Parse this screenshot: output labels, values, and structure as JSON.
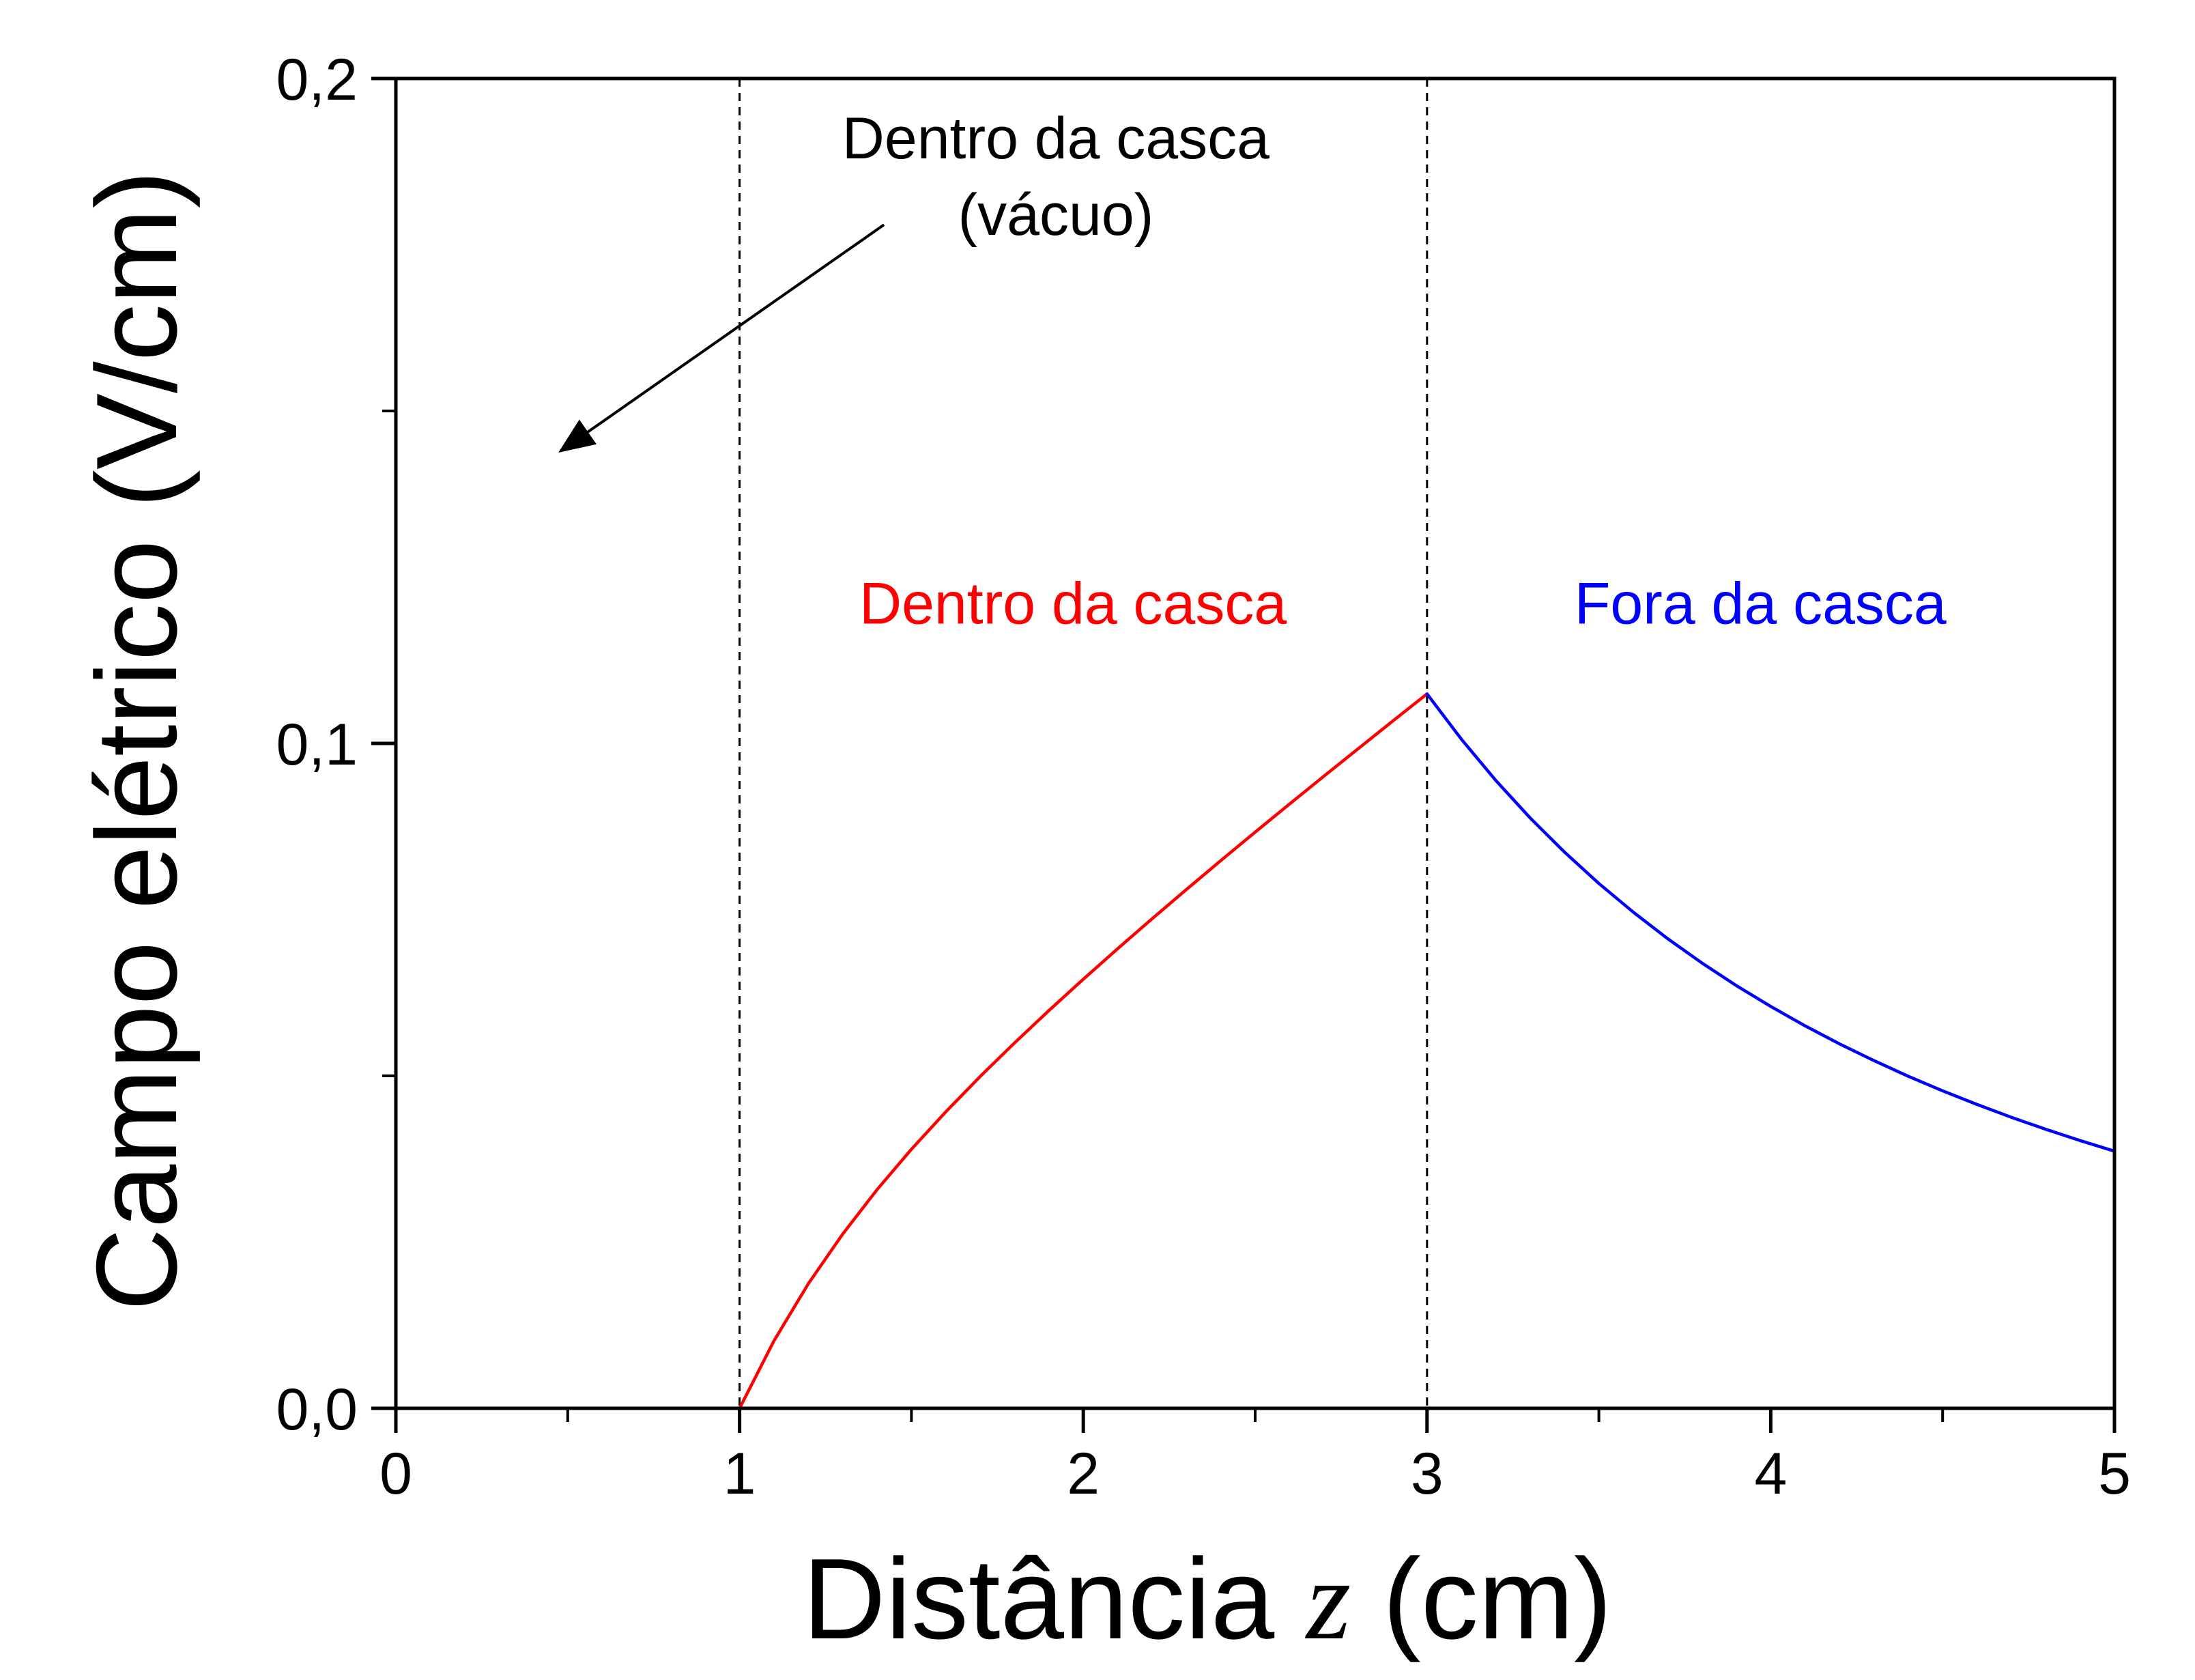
{
  "chart_data": {
    "type": "line",
    "xlabel_parts": [
      "Distância ",
      "z",
      " (cm)"
    ],
    "ylabel": "Campo elétrico (V/cm)",
    "xlim": [
      0,
      5
    ],
    "ylim": [
      0,
      0.2
    ],
    "x_ticks": [
      0,
      1,
      2,
      3,
      4,
      5
    ],
    "x_tick_labels": [
      "0",
      "1",
      "2",
      "3",
      "4",
      "5"
    ],
    "x_minor_ticks": [
      0.5,
      1.5,
      2.5,
      3.5,
      4.5
    ],
    "y_ticks": [
      0,
      0.1,
      0.2
    ],
    "y_tick_labels": [
      "0,0",
      "0,1",
      "0,2"
    ],
    "y_minor_ticks": [
      0.05,
      0.15
    ],
    "grid": false,
    "vlines": [
      {
        "x": 1,
        "style": "dashed",
        "color": "#000000"
      },
      {
        "x": 3,
        "style": "dashed",
        "color": "#000000"
      }
    ],
    "series": [
      {
        "color": "#ff0000",
        "x": [
          1.0,
          1.1,
          1.2,
          1.3,
          1.4,
          1.5,
          1.6,
          1.7,
          1.8,
          1.9,
          2.0,
          2.1,
          2.2,
          2.3,
          2.4,
          2.5,
          2.6,
          2.7,
          2.8,
          2.9,
          3.0
        ],
        "y": [
          0.0,
          0.01015,
          0.01874,
          0.02621,
          0.03288,
          0.03896,
          0.0446,
          0.04991,
          0.05496,
          0.05983,
          0.06454,
          0.06913,
          0.07362,
          0.07803,
          0.08237,
          0.08665,
          0.09088,
          0.09507,
          0.09922,
          0.10335,
          0.10744
        ]
      },
      {
        "color": "#0000ff",
        "x": [
          3.0,
          3.1,
          3.2,
          3.3,
          3.4,
          3.5,
          3.6,
          3.7,
          3.8,
          3.9,
          4.0,
          4.1,
          4.2,
          4.3,
          4.4,
          4.5,
          4.6,
          4.7,
          4.8,
          4.9,
          5.0
        ],
        "y": [
          0.10744,
          0.10063,
          0.09444,
          0.08879,
          0.08365,
          0.07893,
          0.07462,
          0.07064,
          0.06697,
          0.06357,
          0.06044,
          0.05752,
          0.05482,
          0.0523,
          0.04994,
          0.04775,
          0.0457,
          0.04377,
          0.04197,
          0.04027,
          0.03868
        ]
      }
    ],
    "annotations": [
      {
        "lines": [
          "Dentro da casca",
          "(vácuo)"
        ],
        "color": "#000000",
        "x": 1.92,
        "y": 0.188,
        "arrow_from": [
          1.42,
          0.178
        ],
        "arrow_to": [
          0.48,
          0.144
        ]
      },
      {
        "lines": [
          "Dentro da casca"
        ],
        "color": "#ff0000",
        "x": 1.97,
        "y": 0.118
      },
      {
        "lines": [
          "Fora da casca"
        ],
        "color": "#0000ff",
        "x": 3.97,
        "y": 0.118
      }
    ]
  }
}
